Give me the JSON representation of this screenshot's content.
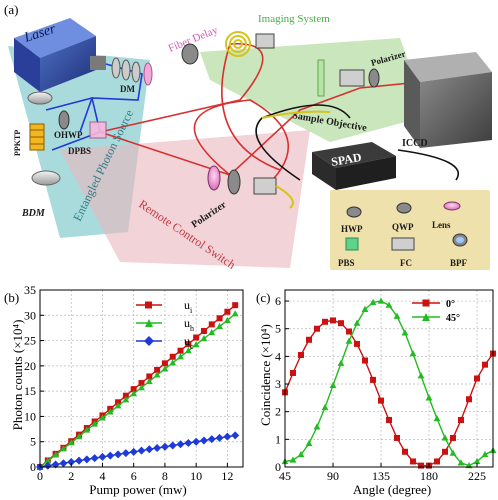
{
  "panels": {
    "a": "(a)",
    "b": "(b)",
    "c": "(c)"
  },
  "setup": {
    "laser": "Laser",
    "fiber_delay": "Fiber Delay",
    "imaging_system": "Imaging System",
    "polarizer_top": "Polarizer",
    "sample_objective": "Sample Objective",
    "iccd": "ICCD",
    "dm": "DM",
    "ohwp": "OHWP",
    "dpbs": "DPBS",
    "ppktp": "PPKTP",
    "bdm": "BDM",
    "entangled_source": "Entangled Photon Source",
    "remote_switch": "Remote Control Switch",
    "polarizer_bottom": "Polarizer",
    "spad": "SPAD",
    "legend_items": [
      "HWP",
      "QWP",
      "Lens",
      "PBS",
      "FC",
      "BPF"
    ]
  },
  "colors": {
    "red": "#cc1111",
    "green": "#22bb22",
    "blue": "#1e3ad8",
    "beam": "#d83030",
    "source_region": "#8ecfd0",
    "remote_region": "#e9b5bd",
    "imaging_region": "#b8dea6",
    "legend_box": "#efe1ac",
    "fiber_delay_text": "#d85ab8",
    "imaging_text": "#44b244",
    "source_text": "#2f7c85",
    "remote_text": "#c03a40"
  },
  "chart_data": [
    {
      "type": "line",
      "xlabel": "Pump power (mw)",
      "ylabel": "Photon counts (×10⁴)",
      "xlim": [
        0,
        13
      ],
      "ylim": [
        0,
        35
      ],
      "xticks": [
        0,
        2,
        4,
        6,
        8,
        10,
        12
      ],
      "yticks": [
        0,
        5,
        10,
        15,
        20,
        25,
        30,
        35
      ],
      "legend_position": "top-right",
      "series": [
        {
          "name": "u",
          "subscript": "i",
          "color": "#cc1111",
          "marker": "square",
          "x": [
            0,
            0.5,
            1,
            1.5,
            2,
            2.5,
            3,
            3.5,
            4,
            4.5,
            5,
            5.5,
            6,
            6.5,
            7,
            7.5,
            8,
            8.5,
            9,
            9.5,
            10,
            10.5,
            11,
            11.5,
            12,
            12.5
          ],
          "y": [
            0,
            1.3,
            2.6,
            3.8,
            5.1,
            6.4,
            7.7,
            9.0,
            10.2,
            11.5,
            12.8,
            14.1,
            15.4,
            16.6,
            17.9,
            19.2,
            20.5,
            21.8,
            23.0,
            24.3,
            25.6,
            26.9,
            28.2,
            29.4,
            30.7,
            32.0
          ]
        },
        {
          "name": "u",
          "subscript": "h",
          "color": "#22bb22",
          "marker": "triangle",
          "x": [
            0,
            0.5,
            1,
            1.5,
            2,
            2.5,
            3,
            3.5,
            4,
            4.5,
            5,
            5.5,
            6,
            6.5,
            7,
            7.5,
            8,
            8.5,
            9,
            9.5,
            10,
            10.5,
            11,
            11.5,
            12,
            12.5
          ],
          "y": [
            0,
            1.2,
            2.4,
            3.6,
            4.8,
            6.0,
            7.3,
            8.5,
            9.7,
            10.9,
            12.1,
            13.3,
            14.5,
            15.7,
            16.9,
            18.2,
            19.4,
            20.6,
            21.8,
            23.0,
            24.2,
            25.4,
            26.6,
            27.8,
            29.0,
            30.3
          ]
        },
        {
          "name": "u",
          "subscript": "c",
          "color": "#1e3ad8",
          "marker": "diamond",
          "x": [
            0,
            0.5,
            1,
            1.5,
            2,
            2.5,
            3,
            3.5,
            4,
            4.5,
            5,
            5.5,
            6,
            6.5,
            7,
            7.5,
            8,
            8.5,
            9,
            9.5,
            10,
            10.5,
            11,
            11.5,
            12,
            12.5
          ],
          "y": [
            0,
            0.25,
            0.5,
            0.75,
            1.0,
            1.25,
            1.5,
            1.75,
            2.0,
            2.25,
            2.5,
            2.75,
            3.0,
            3.25,
            3.5,
            3.75,
            4.0,
            4.25,
            4.5,
            4.75,
            5.0,
            5.25,
            5.5,
            5.75,
            6.0,
            6.25
          ]
        }
      ]
    },
    {
      "type": "line",
      "xlabel": "Angle (degree)",
      "ylabel": "Coincidence (×10⁴)",
      "xlim": [
        45,
        240
      ],
      "ylim": [
        0,
        6.4
      ],
      "xticks": [
        45,
        90,
        135,
        180,
        225
      ],
      "yticks": [
        0,
        1,
        2,
        3,
        4,
        5,
        6
      ],
      "legend_position": "top-right",
      "series": [
        {
          "name": "0°",
          "color": "#cc1111",
          "marker": "square",
          "x": [
            45,
            52.5,
            60,
            67.5,
            75,
            82.5,
            90,
            97.5,
            105,
            112.5,
            120,
            127.5,
            135,
            142.5,
            150,
            157.5,
            165,
            172.5,
            180,
            187.5,
            195,
            202.5,
            210,
            217.5,
            225,
            232.5,
            240
          ],
          "y": [
            2.7,
            3.4,
            4.05,
            4.6,
            5.0,
            5.25,
            5.3,
            5.2,
            4.9,
            4.45,
            3.85,
            3.15,
            2.4,
            1.7,
            1.05,
            0.55,
            0.2,
            0.05,
            0.05,
            0.2,
            0.55,
            1.05,
            1.7,
            2.45,
            3.2,
            3.7,
            4.1
          ]
        },
        {
          "name": "45°",
          "color": "#22bb22",
          "marker": "triangle",
          "x": [
            45,
            52.5,
            60,
            67.5,
            75,
            82.5,
            90,
            97.5,
            105,
            112.5,
            120,
            127.5,
            135,
            142.5,
            150,
            157.5,
            165,
            172.5,
            180,
            187.5,
            195,
            202.5,
            210,
            217.5,
            225,
            232.5,
            240
          ],
          "y": [
            0.2,
            0.25,
            0.45,
            0.85,
            1.45,
            2.15,
            2.95,
            3.75,
            4.55,
            5.2,
            5.7,
            5.95,
            6.0,
            5.85,
            5.45,
            4.85,
            4.1,
            3.3,
            2.5,
            1.75,
            1.05,
            0.5,
            0.15,
            0.05,
            0.2,
            0.45,
            0.6
          ]
        }
      ]
    }
  ]
}
